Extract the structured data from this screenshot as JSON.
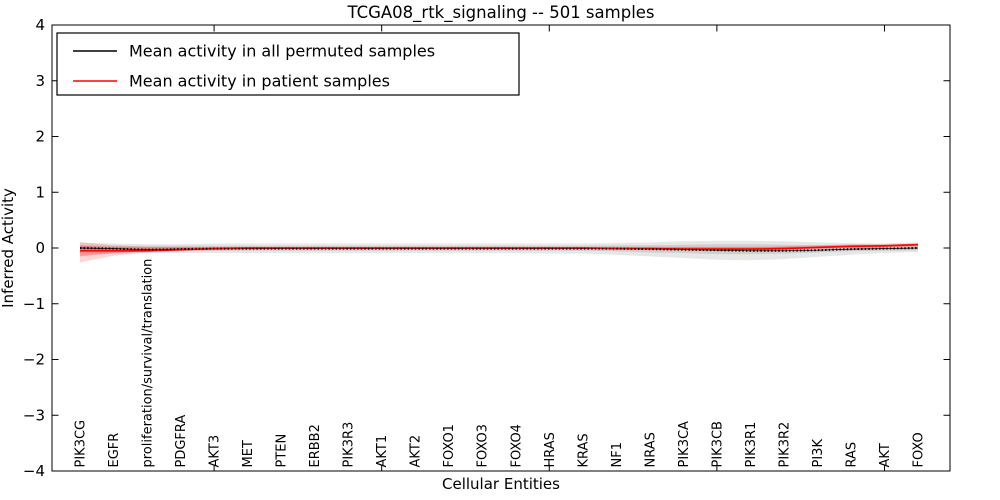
{
  "figure": {
    "title": "TCGA08_rtk_signaling -- 501 samples",
    "xlabel": "Cellular Entities",
    "ylabel": "Inferred Activity"
  },
  "legend": {
    "position": "upper left",
    "items": [
      {
        "label": "Mean activity in all permuted samples",
        "color": "#000000",
        "style": "dotted"
      },
      {
        "label": "Mean activity in patient samples",
        "color": "#ff0000",
        "style": "solid"
      }
    ]
  },
  "colors": {
    "patient_line": "#ff0000",
    "permuted_line": "#000000",
    "patient_band": "#ff0000",
    "permuted_band": "#888888",
    "background": "#ffffff"
  },
  "chart_data": {
    "type": "line",
    "title": "TCGA08_rtk_signaling -- 501 samples",
    "xlabel": "Cellular Entities",
    "ylabel": "Inferred Activity",
    "ylim": [
      -4,
      4
    ],
    "yticks": [
      4,
      3,
      2,
      1,
      0,
      -1,
      -2,
      -3,
      -4
    ],
    "ytick_labels": [
      "4",
      "3",
      "2",
      "1",
      "0",
      "−1",
      "−2",
      "−3",
      "−4"
    ],
    "xtick_indices": [
      4,
      9,
      14,
      19,
      24
    ],
    "grid": false,
    "legend_position": "upper left",
    "categories": [
      "PIK3CG",
      "EGFR",
      "proliferation/survival/translation",
      "PDGFRA",
      "AKT3",
      "MET",
      "PTEN",
      "ERBB2",
      "PIK3R3",
      "AKT1",
      "AKT2",
      "FOXO1",
      "FOXO3",
      "FOXO4",
      "HRAS",
      "KRAS",
      "NF1",
      "NRAS",
      "PIK3CA",
      "PIK3CB",
      "PIK3R1",
      "PIK3R2",
      "PI3K",
      "RAS",
      "AKT",
      "FOXO"
    ],
    "series": [
      {
        "name": "Mean activity in all permuted samples",
        "color": "#000000",
        "style": "dotted",
        "values": [
          0.0,
          -0.01,
          -0.03,
          -0.02,
          -0.01,
          -0.01,
          -0.01,
          -0.01,
          -0.01,
          -0.01,
          -0.01,
          -0.01,
          -0.01,
          -0.01,
          -0.01,
          -0.01,
          -0.01,
          -0.02,
          -0.03,
          -0.04,
          -0.05,
          -0.05,
          -0.04,
          -0.02,
          -0.01,
          0.0
        ]
      },
      {
        "name": "Mean activity in patient samples",
        "color": "#ff0000",
        "style": "solid",
        "values": [
          -0.05,
          -0.05,
          -0.05,
          -0.03,
          -0.01,
          0.0,
          0.0,
          0.0,
          0.0,
          0.0,
          0.0,
          0.0,
          0.0,
          0.0,
          0.0,
          0.0,
          -0.01,
          -0.01,
          -0.02,
          -0.02,
          -0.02,
          -0.01,
          0.01,
          0.03,
          0.04,
          0.06
        ]
      }
    ],
    "bands": [
      {
        "name": "permuted-band-outer",
        "color": "#888888",
        "opacity": 0.2,
        "upper": [
          0.09,
          0.08,
          0.07,
          0.07,
          0.08,
          0.08,
          0.08,
          0.08,
          0.08,
          0.08,
          0.08,
          0.08,
          0.08,
          0.08,
          0.08,
          0.08,
          0.09,
          0.1,
          0.12,
          0.13,
          0.13,
          0.12,
          0.1,
          0.09,
          0.07,
          0.06
        ],
        "lower": [
          -0.1,
          -0.1,
          -0.09,
          -0.09,
          -0.09,
          -0.09,
          -0.09,
          -0.09,
          -0.09,
          -0.09,
          -0.09,
          -0.09,
          -0.09,
          -0.09,
          -0.1,
          -0.1,
          -0.12,
          -0.15,
          -0.18,
          -0.21,
          -0.22,
          -0.2,
          -0.16,
          -0.12,
          -0.09,
          -0.07
        ]
      },
      {
        "name": "permuted-band-inner",
        "color": "#888888",
        "opacity": 0.25,
        "upper": [
          0.05,
          0.04,
          0.04,
          0.04,
          0.04,
          0.04,
          0.04,
          0.04,
          0.04,
          0.04,
          0.04,
          0.04,
          0.04,
          0.04,
          0.04,
          0.04,
          0.05,
          0.05,
          0.06,
          0.07,
          0.07,
          0.06,
          0.05,
          0.05,
          0.04,
          0.03
        ],
        "lower": [
          -0.05,
          -0.05,
          -0.05,
          -0.05,
          -0.05,
          -0.05,
          -0.05,
          -0.05,
          -0.05,
          -0.05,
          -0.05,
          -0.05,
          -0.05,
          -0.05,
          -0.05,
          -0.05,
          -0.06,
          -0.08,
          -0.09,
          -0.11,
          -0.11,
          -0.1,
          -0.08,
          -0.06,
          -0.05,
          -0.04
        ]
      },
      {
        "name": "patient-band-outer",
        "color": "#ff0000",
        "opacity": 0.16,
        "upper": [
          0.11,
          0.05,
          0.02,
          0.02,
          0.02,
          0.02,
          0.02,
          0.02,
          0.02,
          0.02,
          0.02,
          0.02,
          0.02,
          0.02,
          0.02,
          0.02,
          0.02,
          0.02,
          0.02,
          0.02,
          0.02,
          0.03,
          0.05,
          0.07,
          0.08,
          0.1
        ],
        "lower": [
          -0.26,
          -0.14,
          -0.08,
          -0.06,
          -0.04,
          -0.03,
          -0.02,
          -0.02,
          -0.02,
          -0.02,
          -0.02,
          -0.02,
          -0.02,
          -0.02,
          -0.02,
          -0.02,
          -0.03,
          -0.03,
          -0.04,
          -0.05,
          -0.05,
          -0.04,
          -0.02,
          0.0,
          0.01,
          0.02
        ]
      },
      {
        "name": "patient-band-inner",
        "color": "#ff0000",
        "opacity": 0.28,
        "upper": [
          0.04,
          0.01,
          0.01,
          0.01,
          0.01,
          0.01,
          0.01,
          0.01,
          0.01,
          0.01,
          0.01,
          0.01,
          0.01,
          0.01,
          0.01,
          0.01,
          0.01,
          0.01,
          0.01,
          0.01,
          0.01,
          0.02,
          0.03,
          0.05,
          0.06,
          0.08
        ],
        "lower": [
          -0.15,
          -0.09,
          -0.06,
          -0.04,
          -0.03,
          -0.02,
          -0.01,
          -0.01,
          -0.01,
          -0.01,
          -0.01,
          -0.01,
          -0.01,
          -0.01,
          -0.01,
          -0.01,
          -0.02,
          -0.02,
          -0.03,
          -0.03,
          -0.03,
          -0.02,
          0.0,
          0.01,
          0.02,
          0.04
        ]
      }
    ]
  }
}
